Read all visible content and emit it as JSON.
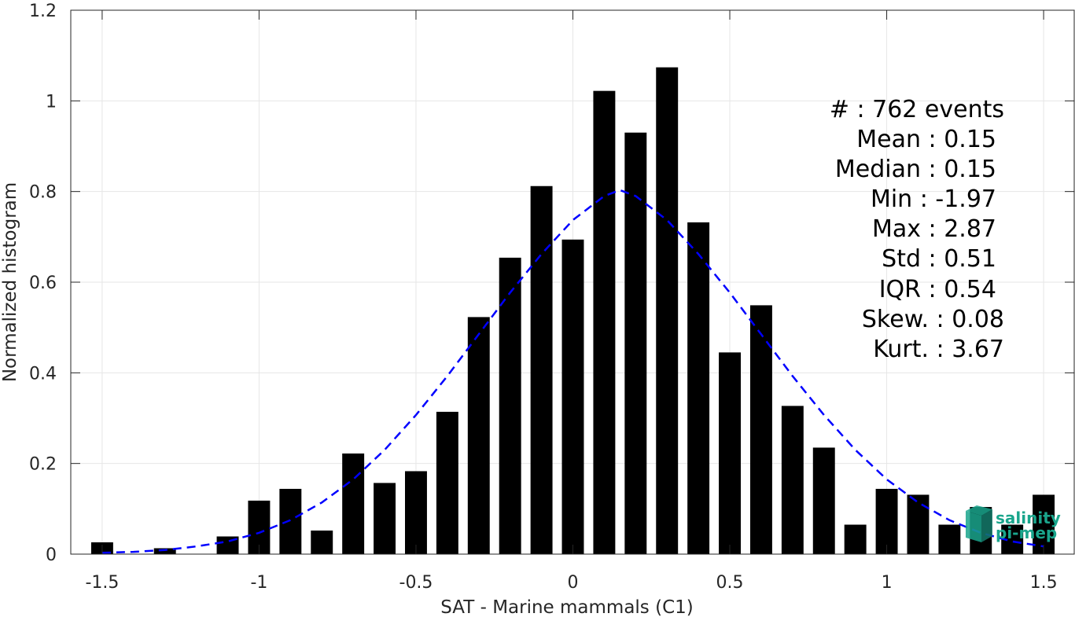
{
  "chart_data": {
    "type": "bar",
    "xlabel": "SAT - Marine mammals (C1)",
    "ylabel": "Normalized histogram",
    "xlim": [
      -1.6,
      1.6
    ],
    "ylim": [
      0,
      1.2
    ],
    "xticks": [
      "-1.5",
      "-1",
      "-0.5",
      "0",
      "0.5",
      "1",
      "1.5"
    ],
    "yticks": [
      "0",
      "0.2",
      "0.4",
      "0.6",
      "0.8",
      "1",
      "1.2"
    ],
    "grid": true,
    "bin_width": 0.1,
    "x": [
      -1.5,
      -1.4,
      -1.3,
      -1.2,
      -1.1,
      -1.0,
      -0.9,
      -0.8,
      -0.7,
      -0.6,
      -0.5,
      -0.4,
      -0.3,
      -0.2,
      -0.1,
      0.0,
      0.1,
      0.2,
      0.3,
      0.4,
      0.5,
      0.6,
      0.7,
      0.8,
      0.9,
      1.0,
      1.1,
      1.2,
      1.3,
      1.4,
      1.5
    ],
    "values": [
      0.026,
      0.0,
      0.013,
      0.0,
      0.039,
      0.118,
      0.144,
      0.052,
      0.222,
      0.157,
      0.183,
      0.314,
      0.523,
      0.654,
      0.812,
      0.694,
      1.022,
      0.93,
      1.074,
      0.732,
      0.445,
      0.549,
      0.327,
      0.235,
      0.065,
      0.144,
      0.131,
      0.065,
      0.104,
      0.065,
      0.131
    ],
    "bar_color": "#000000",
    "fit": {
      "type": "gaussian",
      "line": "dashed",
      "color": "#0000ff",
      "x": [
        -1.5,
        -1.4,
        -1.3,
        -1.2,
        -1.1,
        -1.0,
        -0.9,
        -0.8,
        -0.7,
        -0.6,
        -0.5,
        -0.4,
        -0.3,
        -0.2,
        -0.1,
        0.0,
        0.1,
        0.15,
        0.2,
        0.3,
        0.4,
        0.5,
        0.6,
        0.7,
        0.8,
        0.9,
        1.0,
        1.1,
        1.2,
        1.3,
        1.4,
        1.5
      ],
      "y": [
        0.003,
        0.005,
        0.009,
        0.017,
        0.028,
        0.047,
        0.075,
        0.114,
        0.165,
        0.23,
        0.307,
        0.393,
        0.485,
        0.577,
        0.662,
        0.737,
        0.79,
        0.803,
        0.79,
        0.737,
        0.662,
        0.577,
        0.485,
        0.393,
        0.307,
        0.23,
        0.165,
        0.114,
        0.075,
        0.047,
        0.028,
        0.017
      ]
    }
  },
  "stats": {
    "lines": [
      "#  : 762 events",
      "Mean : 0.15",
      "Median : 0.15",
      "Min : -1.97",
      "Max : 2.87",
      "Std : 0.51",
      "IQR : 0.54",
      "Skew. : 0.08",
      "Kurt. : 3.67"
    ]
  },
  "logo": {
    "line1": "salinity",
    "line2": "pi-mep",
    "color_primary": "#1aa58c",
    "color_dark": "#157a6a"
  }
}
